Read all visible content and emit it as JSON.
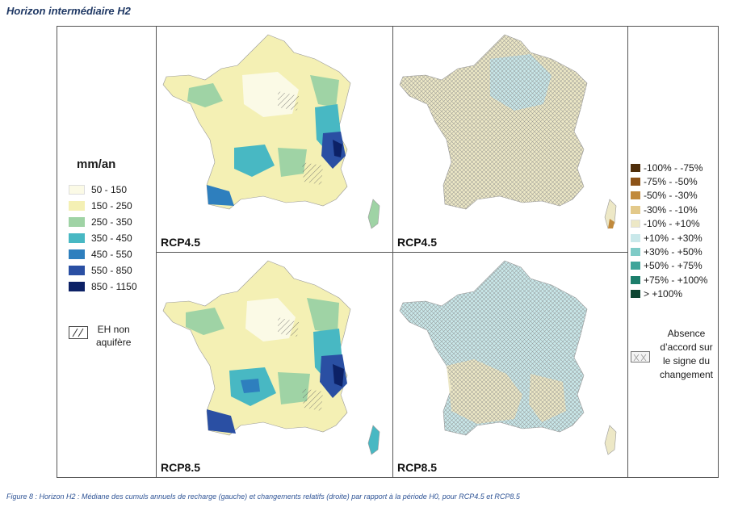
{
  "heading": "Horizon intermédiaire H2",
  "recharge_legend": {
    "title": "mm/an",
    "classes": [
      {
        "label": "50 - 150",
        "color": "#fbfae6"
      },
      {
        "label": "150 - 250",
        "color": "#f4f0b4"
      },
      {
        "label": "250 - 350",
        "color": "#9fd3a5"
      },
      {
        "label": "350 - 450",
        "color": "#48b8c3"
      },
      {
        "label": "450 - 550",
        "color": "#2e7fbe"
      },
      {
        "label": "550 - 850",
        "color": "#2a4fa3"
      },
      {
        "label": "850 - 1150",
        "color": "#0c2166"
      }
    ],
    "aquifer_note": [
      "EH non",
      "aquifère"
    ]
  },
  "change_legend": {
    "classes": [
      {
        "label": "-100% - -75%",
        "color": "#4f2e0a"
      },
      {
        "label": "-75% - -50%",
        "color": "#8c5318"
      },
      {
        "label": "-50% - -30%",
        "color": "#c18a3c"
      },
      {
        "label": "-30% - -10%",
        "color": "#e3c98a"
      },
      {
        "label": "-10% - +10%",
        "color": "#ede8c6"
      },
      {
        "label": "+10% - +30%",
        "color": "#c9e8ea"
      },
      {
        "label": "+30% - +50%",
        "color": "#7fcbc7"
      },
      {
        "label": "+50% - +75%",
        "color": "#3ea59a"
      },
      {
        "label": "+75% - +100%",
        "color": "#1c7e6b"
      },
      {
        "label": "> +100%",
        "color": "#0d4532"
      }
    ],
    "agreement_note": [
      "Absence",
      "d’accord sur",
      "le signe du",
      "changement"
    ]
  },
  "panels": {
    "top_left": {
      "scenario": "RCP4.5",
      "variable": "recharge"
    },
    "top_right": {
      "scenario": "RCP4.5",
      "variable": "change"
    },
    "bottom_left": {
      "scenario": "RCP8.5",
      "variable": "recharge"
    },
    "bottom_right": {
      "scenario": "RCP8.5",
      "variable": "change"
    }
  },
  "caption": "Figure 8 : Horizon H2 : Médiane des cumuls annuels de recharge (gauche) et changements relatifs (droite) par rapport à la période H0, pour RCP4.5 et RCP8.5",
  "icons": {
    "aquifer_pattern": "diagonal-hatch-icon",
    "agreement_pattern": "cross-hatch-icon"
  }
}
